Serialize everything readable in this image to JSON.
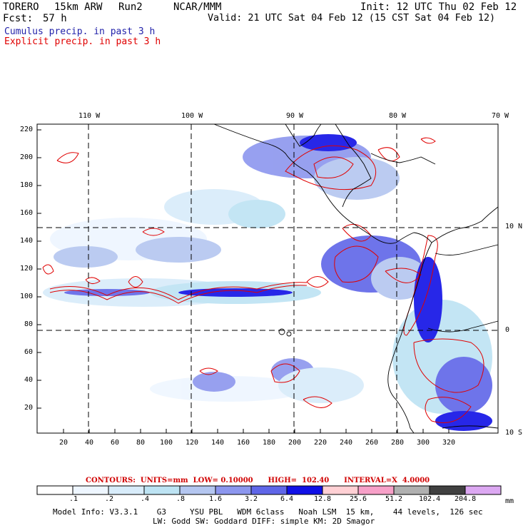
{
  "header": {
    "model": "TORERO",
    "res": "15km ARW",
    "run": "Run2",
    "center": "NCAR/MMM",
    "init": "Init: 12 UTC Thu 02 Feb 12",
    "fcst": "Fcst:",
    "fcst_hours": "57 h",
    "valid": "Valid: 21 UTC Sat 04 Feb 12 (15 CST Sat 04 Feb 12)"
  },
  "fields": {
    "cumulus": "Cumulus precip. in past 3 h",
    "explicit": "Explicit precip. in past 3 h"
  },
  "axes": {
    "top": [
      "110 W",
      "100 W",
      "90 W",
      "80 W",
      "70 W"
    ],
    "right": [
      "10 N",
      "0",
      "10 S"
    ],
    "left": [
      "220",
      "200",
      "180",
      "160",
      "140",
      "120",
      "100",
      "80",
      "60",
      "40",
      "20"
    ],
    "bottom": [
      "20",
      "40",
      "60",
      "80",
      "100",
      "120",
      "140",
      "160",
      "180",
      "200",
      "220",
      "240",
      "260",
      "280",
      "300",
      "320"
    ]
  },
  "contours_info": "CONTOURS:  UNITS=mm  LOW= 0.10000      HIGH=  102.40      INTERVAL=X  4.0000",
  "colorbar": {
    "labels": [
      ".1",
      ".2",
      ".4",
      ".8",
      "1.6",
      "3.2",
      "6.4",
      "12.8",
      "25.6",
      "51.2",
      "102.4",
      "204.8"
    ],
    "unit": "mm",
    "colors": [
      "#ffffff",
      "#eef6ff",
      "#d8ecfa",
      "#bde3f3",
      "#b4c6f0",
      "#8c96ee",
      "#5f66e8",
      "#1010e6",
      "#ffd0d4",
      "#f7a0c8",
      "#b0b0b0",
      "#404040",
      "#dca8f2"
    ]
  },
  "footer": {
    "line1": "Model Info: V3.3.1    G3     YSU PBL   WDM 6class   Noah LSM  15 km,    44 levels,  126 sec",
    "line2": "LW: Godd SW: Goddard DIFF: simple KM: 2D Smagor"
  }
}
